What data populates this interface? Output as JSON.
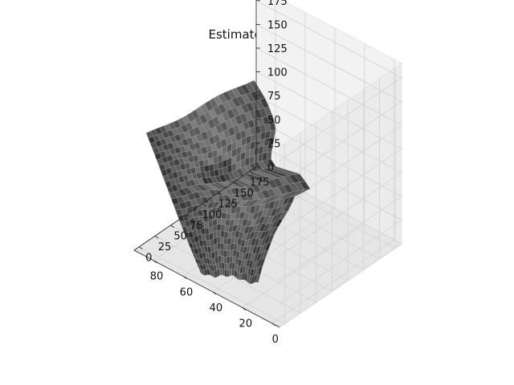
{
  "chart_data": {
    "type": "surface3d",
    "title": "Estimated surface",
    "xlabel": "",
    "ylabel": "",
    "zlabel": "",
    "x_ticks": [
      0,
      20,
      40,
      60,
      80
    ],
    "y_ticks": [
      0,
      25,
      50,
      75,
      100,
      125,
      150,
      175
    ],
    "z_ticks": [
      0,
      25,
      50,
      75,
      100,
      125,
      150,
      175
    ],
    "xlim": [
      -5,
      93
    ],
    "ylim": [
      -8,
      185
    ],
    "zlim": [
      0,
      190
    ],
    "grid": true,
    "legend": "none",
    "surface_color": "#555555",
    "edge_color": "#a8a8a8",
    "pane_color": "#f2f2f2",
    "description_shape": "relief surface of a human face in profile"
  }
}
